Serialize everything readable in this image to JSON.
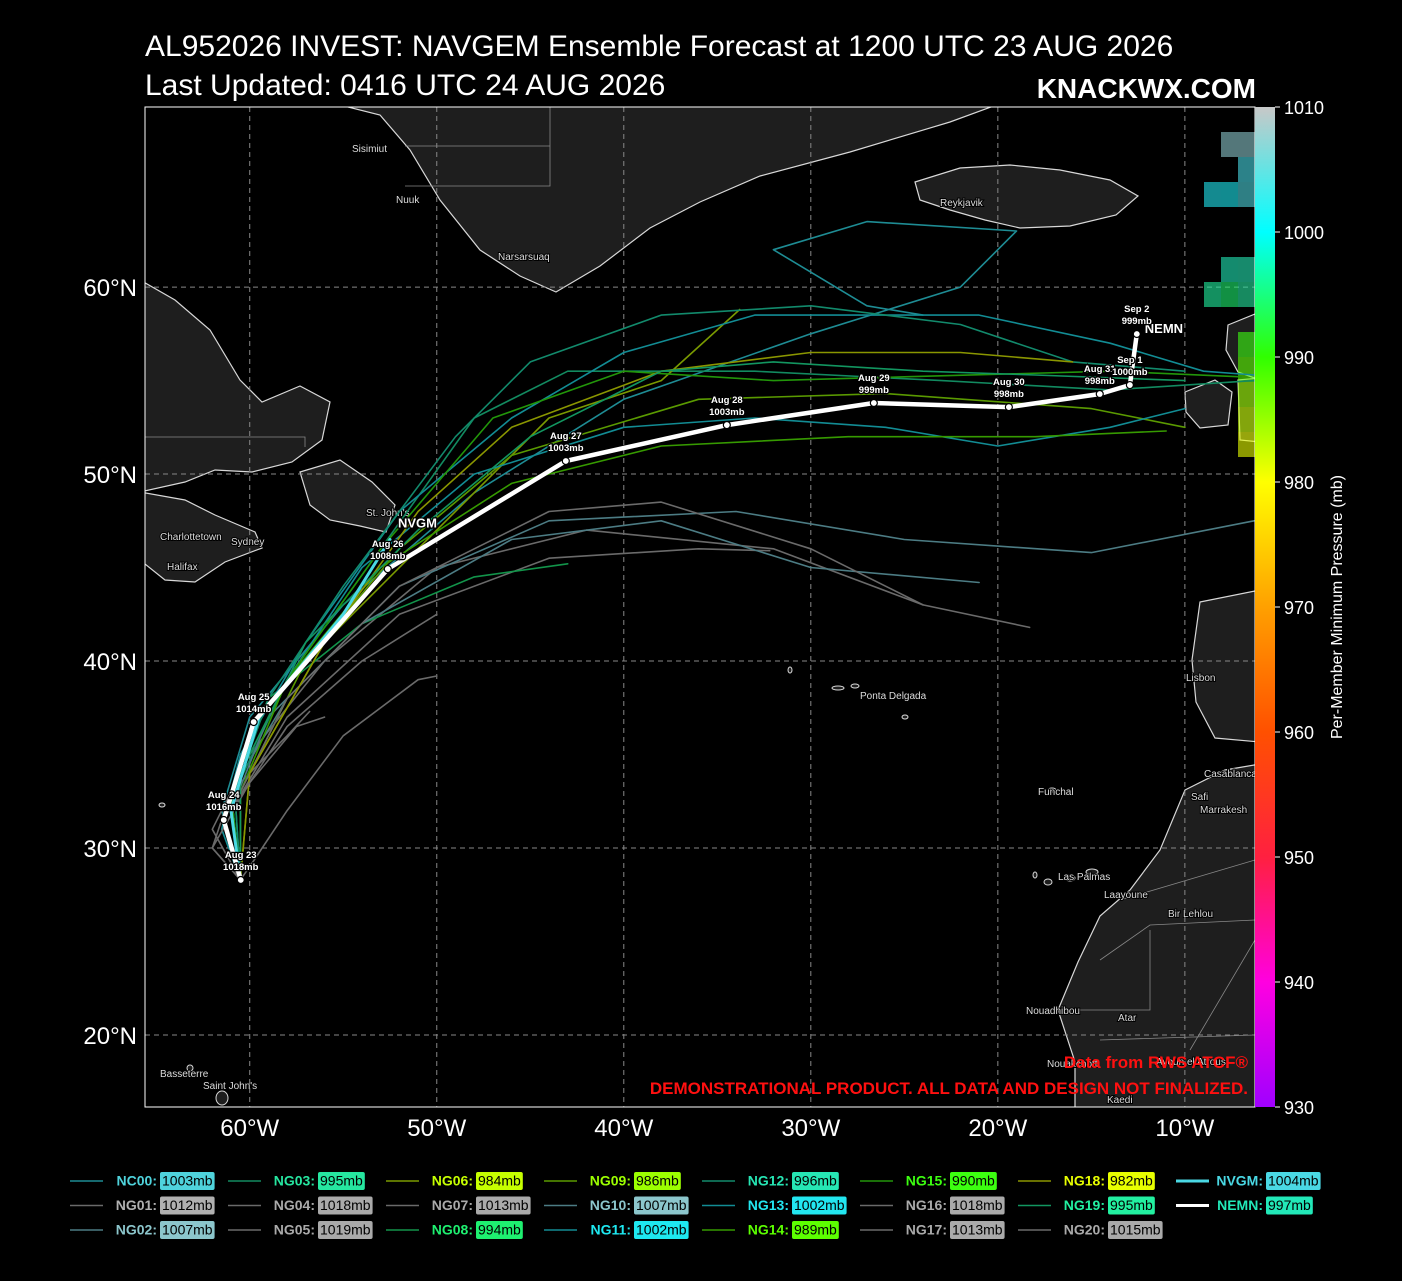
{
  "title": "AL952026 INVEST: NAVGEM Ensemble Forecast at 1200 UTC 23 AUG 2026",
  "subtitle": "Last Updated: 0416 UTC 24 AUG 2026",
  "brand": "KNACKWX.COM",
  "notes": [
    "Data from RWS ATCF®",
    "DEMONSTRATIONAL PRODUCT. ALL DATA AND DESIGN NOT FINALIZED."
  ],
  "places": [
    "Sisimiut",
    "Nuuk",
    "Narsarsuaq",
    "Reykjavik",
    "St. John's",
    "Charlottetown",
    "Sydney",
    "Halifax",
    "Ponta Delgada",
    "Funchal",
    "Las Palmas",
    "Laayoune",
    "Bir Lehlou",
    "Lisbon",
    "Casablanca",
    "Safi",
    "Marrakesh",
    "Nouadhibou",
    "Nouakchott",
    "Atar",
    "Ayoun el Atrous",
    "Kaedi",
    "Basseterre",
    "Saint John's"
  ],
  "chart_data": {
    "type": "track-map",
    "xlim": [
      -65.6,
      -6.25
    ],
    "ylim": [
      16.15,
      69.63
    ],
    "grid": true,
    "xticks": [
      {
        "value": -60,
        "label": "60°W"
      },
      {
        "value": -50,
        "label": "50°W"
      },
      {
        "value": -40,
        "label": "40°W"
      },
      {
        "value": -30,
        "label": "30°W"
      },
      {
        "value": -20,
        "label": "20°W"
      },
      {
        "value": -10,
        "label": "10°W"
      }
    ],
    "yticks": [
      {
        "value": 20,
        "label": "20°N"
      },
      {
        "value": 30,
        "label": "30°N"
      },
      {
        "value": 40,
        "label": "40°N"
      },
      {
        "value": 50,
        "label": "50°N"
      },
      {
        "value": 60,
        "label": "60°N"
      }
    ],
    "colorbar": {
      "label": "Per-Member Minimum Pressure (mb)",
      "range": [
        930,
        1010
      ],
      "ticks": [
        930,
        940,
        950,
        960,
        970,
        980,
        990,
        1000,
        1010
      ],
      "colors": [
        "#a000ff",
        "#ff00e0",
        "#ff2040",
        "#ff5000",
        "#ffa000",
        "#ffff00",
        "#30ff00",
        "#00ffff",
        "#c8c8c8"
      ]
    },
    "members": [
      {
        "name": "NC00:",
        "pressure": 1003,
        "value_label": "1003mb",
        "color": "#4fd3dc",
        "line_color": "#1e8c94",
        "lon": [
          -60.5,
          -61.5,
          -60,
          -55,
          -48,
          -40,
          -30,
          -22,
          -19,
          -27,
          -32,
          -27,
          -24
        ],
        "lat": [
          28.3,
          32,
          37,
          43,
          49,
          54,
          57.5,
          60,
          63,
          63.5,
          62,
          59,
          58.5
        ]
      },
      {
        "name": "NG01:",
        "pressure": 1012,
        "value_label": "1012mb",
        "color": "#b0b0b0",
        "line_color": "#6a6a6a",
        "lon": [
          -60.5,
          -62,
          -60,
          -56,
          -50,
          -42,
          -32,
          -24,
          -18.3
        ],
        "lat": [
          28.3,
          31,
          35,
          40,
          45,
          47,
          46,
          43,
          41.8
        ]
      },
      {
        "name": "NG02:",
        "pressure": 1007,
        "value_label": "1007mb",
        "color": "#8cc6cc",
        "line_color": "#4c7c84",
        "lon": [
          -60.5,
          -61,
          -58,
          -52,
          -44,
          -34,
          -25,
          -15,
          -6.3
        ],
        "lat": [
          28.3,
          33,
          38,
          44,
          47.5,
          48,
          46.5,
          45.8,
          47.5
        ]
      },
      {
        "name": "NG03:",
        "pressure": 995,
        "value_label": "995mb",
        "color": "#26e6a0",
        "line_color": "#128a60",
        "lon": [
          -60.5,
          -60.8,
          -58,
          -53,
          -48,
          -43,
          -33,
          -23,
          -14,
          -6.3
        ],
        "lat": [
          28.3,
          33,
          39,
          46,
          53,
          55.5,
          55.5,
          55,
          54.5,
          55
        ]
      },
      {
        "name": "NG04:",
        "pressure": 1018,
        "value_label": "1018mb",
        "color": "#aaaaaa",
        "line_color": "#6a6a6a",
        "lon": [
          -60.5,
          -62,
          -61,
          -58,
          -56.8
        ],
        "lat": [
          28.3,
          30,
          33,
          36,
          37.3
        ]
      },
      {
        "name": "NG05:",
        "pressure": 1019,
        "value_label": "1019mb",
        "color": "#aaaaaa",
        "line_color": "#6a6a6a",
        "lon": [
          -60.5,
          -60,
          -58,
          -55,
          -51,
          -50
        ],
        "lat": [
          28.3,
          29,
          32,
          36,
          39,
          39.2
        ]
      },
      {
        "name": "NG06:",
        "pressure": 984,
        "value_label": "984mb",
        "color": "#c6ff00",
        "line_color": "#7a9a00",
        "lon": [
          -60.5,
          -60,
          -56,
          -50,
          -44,
          -38,
          -33.8
        ],
        "lat": [
          28.3,
          34,
          41,
          47,
          53,
          55,
          58.8
        ]
      },
      {
        "name": "NG07:",
        "pressure": 1013,
        "value_label": "1013mb",
        "color": "#aaaaaa",
        "line_color": "#6a6a6a",
        "lon": [
          -60.5,
          -61,
          -58,
          -52,
          -44,
          -36,
          -32.2
        ],
        "lat": [
          28.3,
          32,
          37,
          42.5,
          45.5,
          46,
          45.9
        ]
      },
      {
        "name": "NG08:",
        "pressure": 994,
        "value_label": "994mb",
        "color": "#1ef070",
        "line_color": "#12944a",
        "lon": [
          -60.5,
          -61,
          -59,
          -54,
          -48,
          -43
        ],
        "lat": [
          28.3,
          33,
          38,
          42,
          44.5,
          45.2
        ]
      },
      {
        "name": "NG09:",
        "pressure": 986,
        "value_label": "986mb",
        "color": "#9cff00",
        "line_color": "#5a9a00",
        "lon": [
          -60.5,
          -60.5,
          -57,
          -52,
          -46,
          -36,
          -26,
          -15,
          -10
        ],
        "lat": [
          28.3,
          33,
          40,
          46,
          51,
          54,
          54.3,
          53.5,
          52.5
        ]
      },
      {
        "name": "NG10:",
        "pressure": 1007,
        "value_label": "1007mb",
        "color": "#8cc6cc",
        "line_color": "#4c7c84",
        "lon": [
          -60.5,
          -61,
          -59,
          -54,
          -46,
          -38,
          -30,
          -21
        ],
        "lat": [
          28.3,
          32,
          37,
          42,
          46.5,
          47.5,
          45,
          44.2
        ]
      },
      {
        "name": "NG11:",
        "pressure": 1002,
        "value_label": "1002mb",
        "color": "#1ee8f0",
        "line_color": "#128c94",
        "lon": [
          -60.5,
          -61.5,
          -60.5,
          -57,
          -52,
          -46,
          -40,
          -33,
          -27,
          -21,
          -14,
          -9,
          -6.3
        ],
        "lat": [
          28.3,
          31,
          35,
          41,
          48,
          53,
          56.5,
          58.5,
          58.5,
          58.5,
          57,
          55.5,
          55.3
        ]
      },
      {
        "name": "NG12:",
        "pressure": 996,
        "value_label": "996mb",
        "color": "#26e6b4",
        "line_color": "#128a6c",
        "lon": [
          -60.5,
          -60.8,
          -59,
          -55,
          -49,
          -45,
          -38,
          -30,
          -22,
          -16,
          -10
        ],
        "lat": [
          28.3,
          33,
          38,
          44,
          52,
          56,
          58.5,
          59,
          58,
          56,
          55.5
        ]
      },
      {
        "name": "NG13:",
        "pressure": 1002,
        "value_label": "1002mb",
        "color": "#22e6f0",
        "line_color": "#128c94",
        "lon": [
          -60.5,
          -61,
          -58,
          -54,
          -48,
          -40,
          -33,
          -26,
          -20,
          -14,
          -10
        ],
        "lat": [
          28.3,
          33,
          39,
          45,
          50,
          52.5,
          53,
          52.5,
          51.5,
          52.5,
          53.5
        ]
      },
      {
        "name": "NG14:",
        "pressure": 989,
        "value_label": "989mb",
        "color": "#5cff00",
        "line_color": "#369a00",
        "lon": [
          -60.5,
          -60.5,
          -58,
          -53,
          -46,
          -38,
          -28,
          -18,
          -11
        ],
        "lat": [
          28.3,
          33,
          39,
          45,
          49.5,
          51.5,
          52,
          52,
          52.3
        ]
      },
      {
        "name": "NG15:",
        "pressure": 990,
        "value_label": "990mb",
        "color": "#3cff10",
        "line_color": "#22960a",
        "lon": [
          -60.5,
          -61,
          -58,
          -53,
          -47,
          -40,
          -32,
          -25,
          -14,
          -7
        ],
        "lat": [
          28.3,
          33,
          39,
          46,
          53,
          55.5,
          55,
          55.2,
          55.5,
          55.2
        ]
      },
      {
        "name": "NG16:",
        "pressure": 1018,
        "value_label": "1018mb",
        "color": "#aaaaaa",
        "line_color": "#6a6a6a",
        "lon": [
          -60.5,
          -62,
          -60,
          -57.5,
          -56
        ],
        "lat": [
          28.3,
          30,
          33.5,
          36.5,
          37
        ]
      },
      {
        "name": "NG17:",
        "pressure": 1013,
        "value_label": "1013mb",
        "color": "#aaaaaa",
        "line_color": "#6a6a6a",
        "lon": [
          -60.5,
          -61,
          -58,
          -52,
          -44,
          -38,
          -30,
          -24
        ],
        "lat": [
          28.3,
          32,
          38,
          44,
          48,
          48.5,
          46,
          43
        ]
      },
      {
        "name": "NG18:",
        "pressure": 982,
        "value_label": "982mb",
        "color": "#e8ff00",
        "line_color": "#8a9600",
        "lon": [
          -60.5,
          -60,
          -56,
          -51,
          -46,
          -38,
          -30,
          -22,
          -16
        ],
        "lat": [
          28.3,
          34,
          41,
          48,
          52.5,
          55.5,
          56.5,
          56.5,
          56
        ]
      },
      {
        "name": "NG19:",
        "pressure": 995,
        "value_label": "995mb",
        "color": "#22f0a0",
        "line_color": "#129660",
        "lon": [
          -60.5,
          -60.5,
          -57,
          -51,
          -45,
          -38,
          -32,
          -24,
          -18,
          -10
        ],
        "lat": [
          28.3,
          34,
          41,
          47,
          52,
          55.5,
          56,
          55.5,
          55.3,
          55
        ]
      },
      {
        "name": "NG20:",
        "pressure": 1015,
        "value_label": "1015mb",
        "color": "#aaaaaa",
        "line_color": "#6a6a6a",
        "lon": [
          -60.5,
          -61,
          -58,
          -54,
          -50
        ],
        "lat": [
          28.3,
          32,
          36.5,
          40,
          42.5
        ]
      },
      {
        "name": "NVGM:",
        "map_label": "NVGM",
        "pressure": 1004,
        "value_label": "1004mb",
        "color": "#4ad8e4",
        "line_color": "#4ad8e4",
        "lon": [
          -60.5,
          -61,
          -59.5,
          -55,
          -52.5
        ],
        "lat": [
          28.3,
          32,
          37,
          42.5,
          46.5
        ]
      },
      {
        "name": "NEMN:",
        "map_label": "NEMN",
        "pressure": 997,
        "value_label": "997mb",
        "color": "#22e8b8",
        "line_color": "#ffffff",
        "lon": [
          -60.48,
          -61.39,
          -59.79,
          -52.62,
          -43.1,
          -34.49,
          -26.63,
          -19.41,
          -14.55,
          -12.94,
          -12.57
        ],
        "lat": [
          28.29,
          31.5,
          36.74,
          44.92,
          50.7,
          52.62,
          53.8,
          53.58,
          54.28,
          54.76,
          57.49
        ],
        "dates": [
          "Aug 23",
          "Aug 24",
          "Aug 25",
          "Aug 26",
          "Aug 27",
          "Aug 28",
          "Aug 29",
          "Aug 30",
          "Aug 31",
          "Sep 1",
          "Sep 2"
        ],
        "point_labels": [
          "1018mb",
          "1016mb",
          "1014mb",
          "1008mb",
          "1003mb",
          "1003mb",
          "999mb",
          "998mb",
          "998mb",
          "1000mb",
          "999mb"
        ]
      }
    ]
  }
}
